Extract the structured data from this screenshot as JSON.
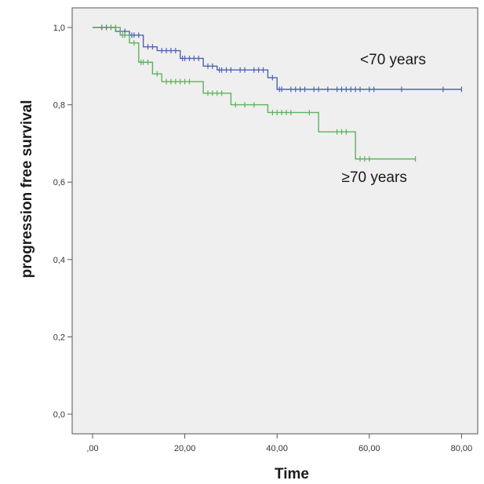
{
  "chart_data": {
    "type": "line",
    "title": "",
    "xlabel": "Time",
    "ylabel": "progression free survival",
    "xlim": [
      0,
      80
    ],
    "ylim": [
      0,
      1
    ],
    "x_ticks": [
      ",00",
      "20,00",
      "40,00",
      "60,00",
      "80,00"
    ],
    "x_tick_values": [
      0,
      20,
      40,
      60,
      80
    ],
    "y_ticks": [
      "0,0",
      "0,2",
      "0,4",
      "0,6",
      "0,8",
      "1,0"
    ],
    "y_tick_values": [
      0,
      0.2,
      0.4,
      0.6,
      0.8,
      1.0
    ],
    "grid": false,
    "background": "#efefef",
    "series": [
      {
        "name": "<70 years",
        "color": "#4e63b0",
        "steps": [
          [
            0,
            1.0
          ],
          [
            5,
            0.99
          ],
          [
            8,
            0.98
          ],
          [
            11,
            0.95
          ],
          [
            14,
            0.94
          ],
          [
            19,
            0.92
          ],
          [
            24,
            0.9
          ],
          [
            27,
            0.89
          ],
          [
            38,
            0.87
          ],
          [
            40,
            0.84
          ],
          [
            80,
            0.84
          ]
        ],
        "censored": [
          [
            2,
            1.0
          ],
          [
            3,
            1.0
          ],
          [
            4,
            1.0
          ],
          [
            6,
            0.99
          ],
          [
            7,
            0.99
          ],
          [
            8.5,
            0.98
          ],
          [
            9,
            0.98
          ],
          [
            10,
            0.98
          ],
          [
            12,
            0.95
          ],
          [
            13,
            0.95
          ],
          [
            15,
            0.94
          ],
          [
            16,
            0.94
          ],
          [
            17,
            0.94
          ],
          [
            18,
            0.94
          ],
          [
            19.5,
            0.92
          ],
          [
            20,
            0.92
          ],
          [
            21,
            0.92
          ],
          [
            22,
            0.92
          ],
          [
            23,
            0.92
          ],
          [
            25,
            0.9
          ],
          [
            26,
            0.9
          ],
          [
            27.5,
            0.89
          ],
          [
            28,
            0.89
          ],
          [
            29,
            0.89
          ],
          [
            30,
            0.89
          ],
          [
            32,
            0.89
          ],
          [
            33,
            0.89
          ],
          [
            35,
            0.89
          ],
          [
            36,
            0.89
          ],
          [
            37,
            0.89
          ],
          [
            39,
            0.87
          ],
          [
            40.5,
            0.84
          ],
          [
            41,
            0.84
          ],
          [
            43,
            0.84
          ],
          [
            44,
            0.84
          ],
          [
            45,
            0.84
          ],
          [
            46,
            0.84
          ],
          [
            48,
            0.84
          ],
          [
            49,
            0.84
          ],
          [
            51,
            0.84
          ],
          [
            53,
            0.84
          ],
          [
            54,
            0.84
          ],
          [
            55,
            0.84
          ],
          [
            56,
            0.84
          ],
          [
            57,
            0.84
          ],
          [
            58,
            0.84
          ],
          [
            60,
            0.84
          ],
          [
            61,
            0.84
          ],
          [
            67,
            0.84
          ],
          [
            76,
            0.84
          ],
          [
            80,
            0.84
          ]
        ]
      },
      {
        "name": "≥70 years",
        "color": "#5cb25c",
        "steps": [
          [
            0,
            1.0
          ],
          [
            6,
            0.98
          ],
          [
            8,
            0.96
          ],
          [
            10,
            0.91
          ],
          [
            13,
            0.88
          ],
          [
            15,
            0.86
          ],
          [
            24,
            0.83
          ],
          [
            30,
            0.8
          ],
          [
            38,
            0.78
          ],
          [
            49,
            0.73
          ],
          [
            57,
            0.66
          ],
          [
            70,
            0.66
          ]
        ],
        "censored": [
          [
            4,
            1.0
          ],
          [
            5,
            1.0
          ],
          [
            6.5,
            0.98
          ],
          [
            7,
            0.98
          ],
          [
            9,
            0.96
          ],
          [
            10.5,
            0.91
          ],
          [
            11,
            0.91
          ],
          [
            12,
            0.91
          ],
          [
            14,
            0.88
          ],
          [
            16,
            0.86
          ],
          [
            17,
            0.86
          ],
          [
            18,
            0.86
          ],
          [
            19,
            0.86
          ],
          [
            20,
            0.86
          ],
          [
            21,
            0.86
          ],
          [
            25,
            0.83
          ],
          [
            26,
            0.83
          ],
          [
            27,
            0.83
          ],
          [
            28,
            0.83
          ],
          [
            31,
            0.8
          ],
          [
            33,
            0.8
          ],
          [
            35,
            0.8
          ],
          [
            39,
            0.78
          ],
          [
            40,
            0.78
          ],
          [
            41,
            0.78
          ],
          [
            42,
            0.78
          ],
          [
            43,
            0.78
          ],
          [
            47,
            0.78
          ],
          [
            53,
            0.73
          ],
          [
            54,
            0.73
          ],
          [
            55,
            0.73
          ],
          [
            58,
            0.66
          ],
          [
            59,
            0.66
          ],
          [
            60,
            0.66
          ],
          [
            70,
            0.66
          ]
        ]
      }
    ],
    "annotations": [
      {
        "text": "<70 years",
        "x": 58,
        "y": 0.905
      },
      {
        "text": "≥70 years",
        "x": 54,
        "y": 0.6
      }
    ]
  }
}
